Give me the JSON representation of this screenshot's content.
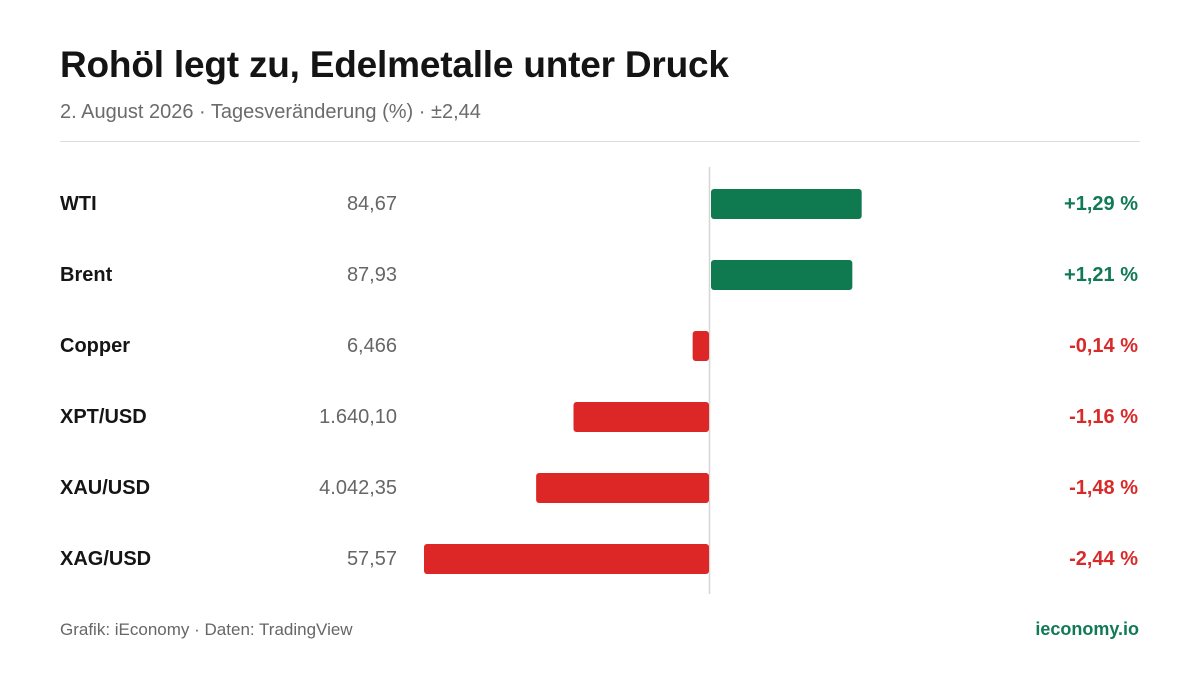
{
  "header": {
    "title": "Rohöl legt zu, Edelmetalle unter Druck",
    "subtitle": "2. August 2026 · Tagesveränderung (%) · ±2,44"
  },
  "footer": {
    "source": "Grafik: iEconomy · Daten: TradingView",
    "brand": "ieconomy.io"
  },
  "colors": {
    "positive": "#0f7a4f",
    "negative": "#dd2626",
    "positive_text": "#117a55",
    "negative_text": "#d92a2a",
    "axis": "#d6d6d6"
  },
  "chart_data": {
    "type": "bar",
    "orientation": "horizontal",
    "xlim": [
      -2.44,
      2.44
    ],
    "categories": [
      "WTI",
      "Brent",
      "Copper",
      "XPT/USD",
      "XAU/USD",
      "XAG/USD"
    ],
    "prices": [
      "84,67",
      "87,93",
      "6,466",
      "1.640,10",
      "4.042,35",
      "57,57"
    ],
    "values": [
      1.29,
      1.21,
      -0.14,
      -1.16,
      -1.48,
      -2.44
    ],
    "value_labels": [
      "+1,29 %",
      "+1,21 %",
      "-0,14 %",
      "-1,16 %",
      "-1,48 %",
      "-2,44 %"
    ]
  }
}
